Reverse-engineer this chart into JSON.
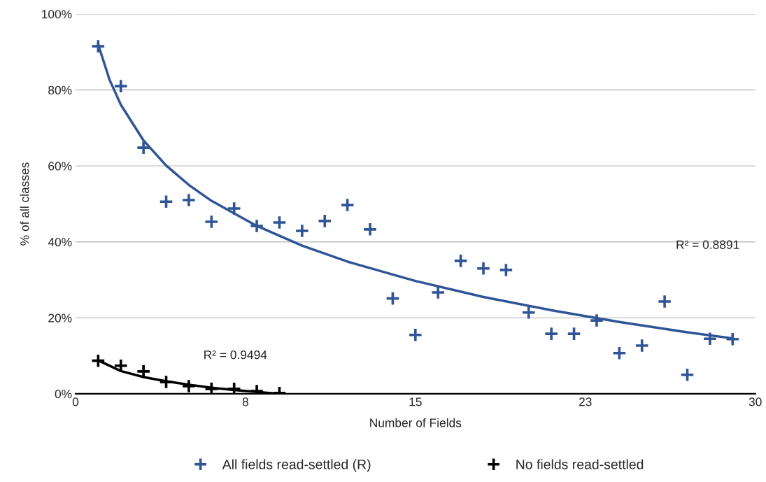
{
  "chart_data": {
    "type": "scatter",
    "xlabel": "Number of Fields",
    "ylabel": "% of all classes",
    "xlim": [
      0,
      30
    ],
    "xticks": [
      0,
      {
        "value": 7.5,
        "label": "8"
      },
      15,
      {
        "value": 22.5,
        "label": "23"
      },
      30
    ],
    "ylim": [
      0,
      100
    ],
    "yticks": [
      {
        "value": 0,
        "label": "0%"
      },
      {
        "value": 20,
        "label": "20%"
      },
      {
        "value": 40,
        "label": "40%"
      },
      {
        "value": 60,
        "label": "60%"
      },
      {
        "value": 80,
        "label": "80%"
      },
      {
        "value": 100,
        "label": "100%"
      }
    ],
    "grid": "y",
    "legend": "bottom",
    "series": [
      {
        "name": "All fields read-settled (R)",
        "marker": "cross",
        "color": "#2f5597",
        "x": [
          1,
          2,
          3,
          4,
          5,
          6,
          7,
          8,
          9,
          10,
          11,
          12,
          13,
          14,
          15,
          16,
          17,
          18,
          19,
          20,
          21,
          22,
          23,
          24,
          25,
          26,
          27,
          28,
          29
        ],
        "values": [
          91.5,
          81.0,
          64.8,
          50.6,
          51.0,
          45.3,
          48.8,
          44.2,
          45.1,
          42.9,
          45.5,
          49.7,
          43.3,
          25.1,
          15.5,
          26.7,
          35.0,
          33.0,
          32.6,
          21.4,
          15.8,
          15.8,
          19.3,
          10.7,
          12.7,
          24.3,
          5.0,
          14.5,
          14.4
        ]
      },
      {
        "name": "No fields read-settled",
        "marker": "cross",
        "color": "#000000",
        "x": [
          1,
          2,
          3,
          4,
          5,
          6,
          7,
          8,
          9
        ],
        "values": [
          8.7,
          7.4,
          5.9,
          3.1,
          2.0,
          1.3,
          1.3,
          0.7,
          0.2
        ]
      },
      {
        "type": "line",
        "marker": "none",
        "color": "#2f5597",
        "x": [
          1,
          1.5,
          2,
          3,
          4,
          5,
          6,
          8,
          10,
          12,
          15,
          18,
          21,
          24,
          27,
          29
        ],
        "values": [
          92,
          82.7,
          76.1,
          66.7,
          60.1,
          55,
          50.8,
          44.2,
          39,
          34.8,
          29.7,
          25.5,
          22,
          18.9,
          16.2,
          14.6
        ]
      },
      {
        "type": "line",
        "marker": "none",
        "color": "#000000",
        "x": [
          1,
          2,
          3,
          4,
          5,
          6,
          7,
          8,
          9
        ],
        "values": [
          8.8,
          6.0,
          4.4,
          3.3,
          2.4,
          1.6,
          1.0,
          0.5,
          0.0
        ]
      }
    ],
    "annotations": [
      "R² = 0.8891",
      "R² = 0.9494"
    ]
  }
}
